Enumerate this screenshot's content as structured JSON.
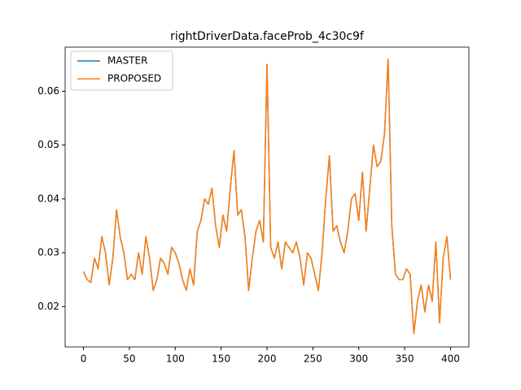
{
  "chart_data": {
    "type": "line",
    "title": "rightDriverData.faceProb_4c30c9f",
    "x": [
      0,
      4,
      8,
      12,
      16,
      20,
      24,
      28,
      32,
      36,
      40,
      44,
      48,
      52,
      56,
      60,
      64,
      68,
      72,
      76,
      80,
      84,
      88,
      92,
      96,
      100,
      104,
      108,
      112,
      116,
      120,
      124,
      128,
      132,
      136,
      140,
      144,
      148,
      152,
      156,
      160,
      164,
      168,
      172,
      176,
      180,
      184,
      188,
      192,
      196,
      200,
      204,
      208,
      212,
      216,
      220,
      224,
      228,
      232,
      236,
      240,
      244,
      248,
      252,
      256,
      260,
      264,
      268,
      272,
      276,
      280,
      284,
      288,
      292,
      296,
      300,
      304,
      308,
      312,
      316,
      320,
      324,
      328,
      332,
      336,
      340,
      344,
      348,
      352,
      356,
      360,
      364,
      368,
      372,
      376,
      380,
      384,
      388,
      392,
      396,
      400
    ],
    "series": [
      {
        "name": "MASTER",
        "color": "#1f77b4",
        "values": [
          0.0265,
          0.025,
          0.0245,
          0.029,
          0.027,
          0.033,
          0.03,
          0.024,
          0.029,
          0.038,
          0.033,
          0.03,
          0.025,
          0.026,
          0.025,
          0.03,
          0.026,
          0.033,
          0.029,
          0.023,
          0.025,
          0.029,
          0.028,
          0.026,
          0.031,
          0.03,
          0.028,
          0.025,
          0.023,
          0.027,
          0.024,
          0.034,
          0.036,
          0.04,
          0.039,
          0.042,
          0.035,
          0.031,
          0.037,
          0.034,
          0.042,
          0.049,
          0.037,
          0.038,
          0.033,
          0.023,
          0.029,
          0.034,
          0.036,
          0.032,
          0.065,
          0.031,
          0.029,
          0.032,
          0.027,
          0.032,
          0.031,
          0.03,
          0.032,
          0.029,
          0.024,
          0.03,
          0.029,
          0.026,
          0.023,
          0.03,
          0.04,
          0.048,
          0.034,
          0.035,
          0.032,
          0.03,
          0.034,
          0.04,
          0.041,
          0.036,
          0.045,
          0.034,
          0.042,
          0.05,
          0.046,
          0.047,
          0.052,
          0.066,
          0.035,
          0.026,
          0.025,
          0.025,
          0.027,
          0.026,
          0.015,
          0.021,
          0.024,
          0.019,
          0.024,
          0.021,
          0.032,
          0.017,
          0.029,
          0.033,
          0.025
        ]
      },
      {
        "name": "PROPOSED",
        "color": "#ff7f0e",
        "values": [
          0.0265,
          0.025,
          0.0245,
          0.029,
          0.027,
          0.033,
          0.03,
          0.024,
          0.029,
          0.038,
          0.033,
          0.03,
          0.025,
          0.026,
          0.025,
          0.03,
          0.026,
          0.033,
          0.029,
          0.023,
          0.025,
          0.029,
          0.028,
          0.026,
          0.031,
          0.03,
          0.028,
          0.025,
          0.023,
          0.027,
          0.024,
          0.034,
          0.036,
          0.04,
          0.039,
          0.042,
          0.035,
          0.031,
          0.037,
          0.034,
          0.042,
          0.049,
          0.037,
          0.038,
          0.033,
          0.023,
          0.029,
          0.034,
          0.036,
          0.032,
          0.065,
          0.031,
          0.029,
          0.032,
          0.027,
          0.032,
          0.031,
          0.03,
          0.032,
          0.029,
          0.024,
          0.03,
          0.029,
          0.026,
          0.023,
          0.03,
          0.04,
          0.048,
          0.034,
          0.035,
          0.032,
          0.03,
          0.034,
          0.04,
          0.041,
          0.036,
          0.045,
          0.034,
          0.042,
          0.05,
          0.046,
          0.047,
          0.052,
          0.066,
          0.035,
          0.026,
          0.025,
          0.025,
          0.027,
          0.026,
          0.015,
          0.021,
          0.024,
          0.019,
          0.024,
          0.021,
          0.032,
          0.017,
          0.029,
          0.033,
          0.025
        ]
      }
    ],
    "xlim": [
      -20,
      420
    ],
    "ylim": [
      0.0125,
      0.0682
    ],
    "xticks": [
      0,
      50,
      100,
      150,
      200,
      250,
      300,
      350,
      400
    ],
    "yticks": [
      0.02,
      0.03,
      0.04,
      0.05,
      0.06
    ],
    "legend": "upper left"
  }
}
